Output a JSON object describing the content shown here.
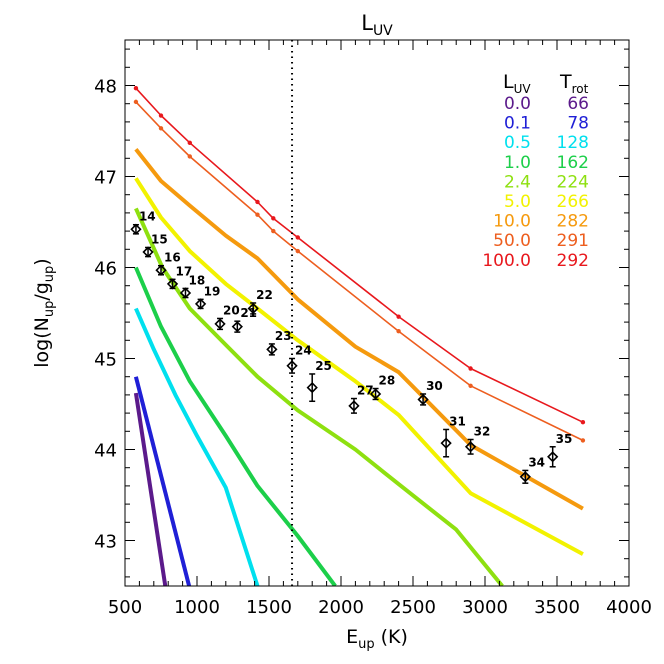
{
  "chart_data": {
    "type": "line",
    "title": {
      "main": "L",
      "sub": "UV"
    },
    "xlabel": {
      "main": "E",
      "sub": "up",
      "tail": " (K)"
    },
    "ylabel": {
      "pre": "log(N",
      "sub1": "up",
      "mid": "/g",
      "sub2": "up",
      "post": ")"
    },
    "xlim": [
      500,
      4000
    ],
    "ylim": [
      42.5,
      48.5
    ],
    "x_ticks": [
      500,
      1000,
      1500,
      2000,
      2500,
      3000,
      3500,
      4000
    ],
    "y_ticks": [
      43,
      44,
      45,
      46,
      47,
      48
    ],
    "vline_x": 1660,
    "legend": {
      "placement": "top-right",
      "header_luv": {
        "main": "L",
        "sub": "UV"
      },
      "header_trot": {
        "main": "T",
        "sub": "rot"
      }
    },
    "series": [
      {
        "luv": "0.0",
        "trot": "66",
        "color": "#5b1a8b",
        "thick": true,
        "dots": false,
        "points": [
          [
            576,
            44.62
          ],
          [
            780,
            42.5
          ]
        ]
      },
      {
        "luv": "0.1",
        "trot": "78",
        "color": "#1f1fd6",
        "thick": true,
        "dots": false,
        "points": [
          [
            576,
            44.8
          ],
          [
            945,
            42.5
          ]
        ]
      },
      {
        "luv": "0.5",
        "trot": "128",
        "color": "#00e0ee",
        "thick": true,
        "dots": false,
        "points": [
          [
            576,
            45.55
          ],
          [
            700,
            45.1
          ],
          [
            850,
            44.6
          ],
          [
            1000,
            44.15
          ],
          [
            1200,
            43.58
          ],
          [
            1420,
            42.5
          ]
        ]
      },
      {
        "luv": "1.0",
        "trot": "162",
        "color": "#1ccf4a",
        "thick": true,
        "dots": false,
        "points": [
          [
            576,
            46.0
          ],
          [
            750,
            45.35
          ],
          [
            950,
            44.75
          ],
          [
            1200,
            44.15
          ],
          [
            1420,
            43.6
          ],
          [
            1700,
            43.05
          ],
          [
            1960,
            42.5
          ]
        ]
      },
      {
        "luv": "2.4",
        "trot": "224",
        "color": "#8ee010",
        "thick": true,
        "dots": false,
        "points": [
          [
            576,
            46.65
          ],
          [
            760,
            46.0
          ],
          [
            950,
            45.55
          ],
          [
            1200,
            45.15
          ],
          [
            1420,
            44.8
          ],
          [
            1700,
            44.43
          ],
          [
            2100,
            44.0
          ],
          [
            2400,
            43.62
          ],
          [
            2800,
            43.12
          ],
          [
            3120,
            42.5
          ]
        ]
      },
      {
        "luv": "5.0",
        "trot": "266",
        "color": "#f2f200",
        "thick": true,
        "dots": false,
        "points": [
          [
            576,
            46.98
          ],
          [
            750,
            46.55
          ],
          [
            950,
            46.18
          ],
          [
            1200,
            45.82
          ],
          [
            1420,
            45.55
          ],
          [
            1700,
            45.2
          ],
          [
            2100,
            44.75
          ],
          [
            2400,
            44.38
          ],
          [
            2900,
            43.52
          ],
          [
            3680,
            42.85
          ]
        ]
      },
      {
        "luv": "10.0",
        "trot": "282",
        "color": "#f59a0e",
        "thick": true,
        "dots": false,
        "points": [
          [
            576,
            47.3
          ],
          [
            750,
            46.95
          ],
          [
            950,
            46.68
          ],
          [
            1200,
            46.35
          ],
          [
            1420,
            46.1
          ],
          [
            1700,
            45.65
          ],
          [
            2100,
            45.13
          ],
          [
            2400,
            44.85
          ],
          [
            2900,
            44.05
          ],
          [
            3680,
            43.35
          ]
        ]
      },
      {
        "luv": "50.0",
        "trot": "291",
        "color": "#ed5e1f",
        "thick": false,
        "dots": true,
        "points": [
          [
            576,
            47.82
          ],
          [
            750,
            47.53
          ],
          [
            950,
            47.22
          ],
          [
            1420,
            46.58
          ],
          [
            1530,
            46.4
          ],
          [
            1700,
            46.18
          ],
          [
            2400,
            45.3
          ],
          [
            2900,
            44.7
          ],
          [
            3680,
            44.1
          ]
        ]
      },
      {
        "luv": "100.0",
        "trot": "292",
        "color": "#e8181d",
        "thick": false,
        "dots": true,
        "points": [
          [
            576,
            47.97
          ],
          [
            750,
            47.67
          ],
          [
            950,
            47.37
          ],
          [
            1420,
            46.72
          ],
          [
            1530,
            46.54
          ],
          [
            1700,
            46.33
          ],
          [
            2400,
            45.46
          ],
          [
            2900,
            44.89
          ],
          [
            3680,
            44.3
          ]
        ]
      }
    ],
    "observations": [
      {
        "label": "14",
        "x": 576,
        "y": 46.42,
        "err": 0.05
      },
      {
        "label": "15",
        "x": 660,
        "y": 46.17,
        "err": 0.05
      },
      {
        "label": "16",
        "x": 750,
        "y": 45.97,
        "err": 0.05
      },
      {
        "label": "17",
        "x": 830,
        "y": 45.82,
        "err": 0.05
      },
      {
        "label": "18",
        "x": 920,
        "y": 45.72,
        "err": 0.05
      },
      {
        "label": "19",
        "x": 1025,
        "y": 45.6,
        "err": 0.05
      },
      {
        "label": "20",
        "x": 1160,
        "y": 45.38,
        "err": 0.06
      },
      {
        "label": "21",
        "x": 1280,
        "y": 45.35,
        "err": 0.06
      },
      {
        "label": "22",
        "x": 1390,
        "y": 45.55,
        "err": 0.06
      },
      {
        "label": "23",
        "x": 1520,
        "y": 45.1,
        "err": 0.06
      },
      {
        "label": "24",
        "x": 1660,
        "y": 44.92,
        "err": 0.08
      },
      {
        "label": "25",
        "x": 1800,
        "y": 44.68,
        "err": 0.15
      },
      {
        "label": "27",
        "x": 2090,
        "y": 44.48,
        "err": 0.08
      },
      {
        "label": "28",
        "x": 2240,
        "y": 44.61,
        "err": 0.06
      },
      {
        "label": "30",
        "x": 2570,
        "y": 44.55,
        "err": 0.06
      },
      {
        "label": "31",
        "x": 2730,
        "y": 44.07,
        "err": 0.15
      },
      {
        "label": "32",
        "x": 2900,
        "y": 44.03,
        "err": 0.08
      },
      {
        "label": "34",
        "x": 3280,
        "y": 43.7,
        "err": 0.07
      },
      {
        "label": "35",
        "x": 3470,
        "y": 43.92,
        "err": 0.11
      }
    ]
  }
}
